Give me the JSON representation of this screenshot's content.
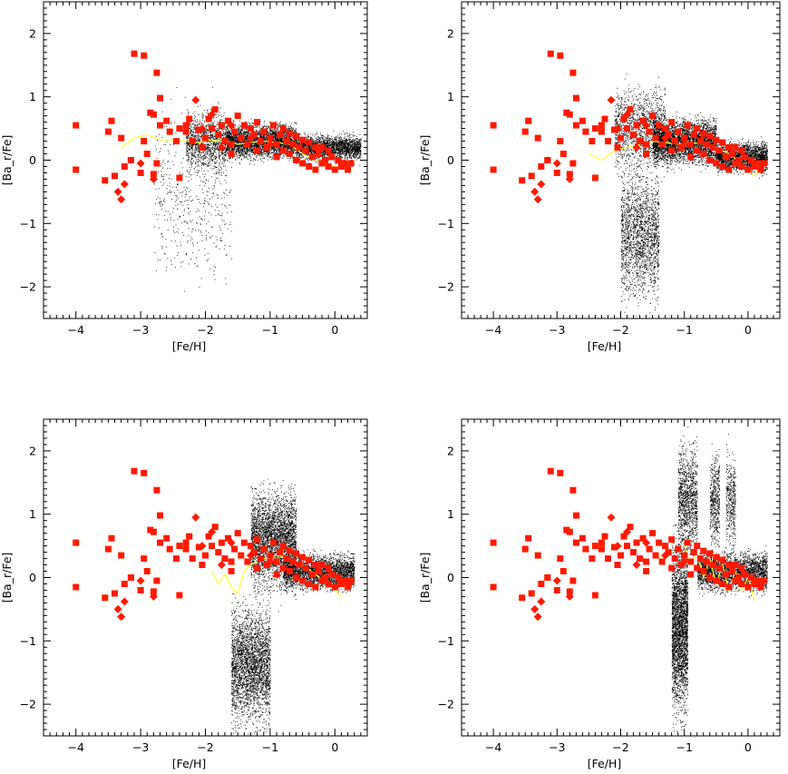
{
  "chart_data": [
    {
      "type": "scatter",
      "panel": "top-left",
      "xlabel": "[Fe/H]",
      "ylabel": "[Ba_r/Fe]",
      "xlim": [
        -4.5,
        0.5
      ],
      "ylim": [
        -2.5,
        2.5
      ],
      "x_ticks": [
        -4,
        -3,
        -2,
        -1,
        0
      ],
      "x_tick_labels": [
        "−4",
        "−3",
        "−2",
        "−1",
        "0"
      ],
      "y_ticks": [
        -2,
        -1,
        0,
        1,
        2
      ],
      "y_tick_labels": [
        "−2",
        "−1",
        "0",
        "1",
        "2"
      ],
      "model_line_color": "#ffff33",
      "trend": [
        [
          -3.3,
          0.2
        ],
        [
          -3.1,
          0.35
        ],
        [
          -2.9,
          0.4
        ],
        [
          -2.7,
          0.32
        ],
        [
          -2.5,
          0.32
        ],
        [
          -2.3,
          0.3
        ],
        [
          -2.1,
          0.28
        ],
        [
          -1.9,
          0.32
        ],
        [
          -1.7,
          0.3
        ],
        [
          -1.5,
          0.25
        ],
        [
          -1.3,
          0.28
        ],
        [
          -1.1,
          0.3
        ],
        [
          -0.9,
          0.28
        ],
        [
          -0.7,
          0.25
        ],
        [
          -0.5,
          0.1
        ],
        [
          -0.3,
          0.0
        ],
        [
          -0.1,
          -0.08
        ],
        [
          0.1,
          -0.12
        ],
        [
          0.2,
          -0.18
        ]
      ],
      "model_cloud": [
        {
          "x": [
            -2.3,
            -1.7
          ],
          "y_mid": 0.3,
          "spread": 0.6,
          "n": 1200
        },
        {
          "x": [
            -1.7,
            -0.6
          ],
          "y_mid": 0.3,
          "spread": 0.35,
          "n": 3500
        },
        {
          "x": [
            -0.6,
            0.4
          ],
          "y_mid": 0.2,
          "spread": 0.25,
          "n": 2500
        },
        {
          "x": [
            -2.8,
            -1.6
          ],
          "y_mid": -0.6,
          "spread": 1.8,
          "n": 500
        }
      ]
    },
    {
      "type": "scatter",
      "panel": "top-right",
      "xlabel": "[Fe/H]",
      "ylabel": "[Ba_r/Fe]",
      "xlim": [
        -4.5,
        0.5
      ],
      "ylim": [
        -2.5,
        2.5
      ],
      "x_ticks": [
        -4,
        -3,
        -2,
        -1,
        0
      ],
      "x_tick_labels": [
        "−4",
        "−3",
        "−2",
        "−1",
        "0"
      ],
      "y_ticks": [
        -2,
        -1,
        0,
        1,
        2
      ],
      "y_tick_labels": [
        "−2",
        "−1",
        "0",
        "1",
        "2"
      ],
      "model_line_color": "#ffff33",
      "trend": [
        [
          -2.5,
          0.1
        ],
        [
          -2.3,
          0.0
        ],
        [
          -2.1,
          0.15
        ],
        [
          -1.9,
          0.2
        ],
        [
          -1.7,
          0.25
        ],
        [
          -1.5,
          0.3
        ],
        [
          -1.3,
          0.28
        ],
        [
          -1.1,
          0.25
        ],
        [
          -0.9,
          0.28
        ],
        [
          -0.7,
          0.25
        ],
        [
          -0.5,
          0.2
        ],
        [
          -0.3,
          0.1
        ],
        [
          -0.1,
          -0.05
        ],
        [
          0.1,
          -0.25
        ],
        [
          0.2,
          -0.1
        ]
      ],
      "model_cloud": [
        {
          "x": [
            -2.0,
            -1.4
          ],
          "y_mid": -1.2,
          "spread": 1.3,
          "n": 2000
        },
        {
          "x": [
            -2.1,
            -1.3
          ],
          "y_mid": 0.5,
          "spread": 0.9,
          "n": 1500
        },
        {
          "x": [
            -1.5,
            -0.5
          ],
          "y_mid": 0.3,
          "spread": 0.45,
          "n": 4000
        },
        {
          "x": [
            -0.5,
            0.3
          ],
          "y_mid": 0.05,
          "spread": 0.3,
          "n": 2500
        }
      ]
    },
    {
      "type": "scatter",
      "panel": "bottom-left",
      "xlabel": "[Fe/H]",
      "ylabel": "[Ba_r/Fe]",
      "xlim": [
        -4.5,
        0.5
      ],
      "ylim": [
        -2.5,
        2.5
      ],
      "x_ticks": [
        -4,
        -3,
        -2,
        -1,
        0
      ],
      "x_tick_labels": [
        "−4",
        "−3",
        "−2",
        "−1",
        "0"
      ],
      "y_ticks": [
        -2,
        -1,
        0,
        1,
        2
      ],
      "y_tick_labels": [
        "−2",
        "−1",
        "0",
        "1",
        "2"
      ],
      "model_line_color": "#ffff33",
      "trend": [
        [
          -1.9,
          0.1
        ],
        [
          -1.8,
          -0.1
        ],
        [
          -1.7,
          0.05
        ],
        [
          -1.6,
          -0.15
        ],
        [
          -1.5,
          -0.25
        ],
        [
          -1.4,
          0.1
        ],
        [
          -1.3,
          0.2
        ],
        [
          -1.1,
          0.3
        ],
        [
          -0.9,
          0.35
        ],
        [
          -0.7,
          0.3
        ],
        [
          -0.5,
          0.2
        ],
        [
          -0.3,
          0.05
        ],
        [
          -0.1,
          -0.1
        ],
        [
          0.1,
          -0.3
        ]
      ],
      "model_cloud": [
        {
          "x": [
            -1.6,
            -1.0
          ],
          "y_mid": -1.4,
          "spread": 1.2,
          "n": 3000
        },
        {
          "x": [
            -1.3,
            -0.6
          ],
          "y_mid": 0.6,
          "spread": 1.0,
          "n": 3500
        },
        {
          "x": [
            -0.8,
            0.3
          ],
          "y_mid": 0.1,
          "spread": 0.35,
          "n": 3000
        }
      ]
    },
    {
      "type": "scatter",
      "panel": "bottom-right",
      "xlabel": "[Fe/H]",
      "ylabel": "[Ba_r/Fe]",
      "xlim": [
        -4.5,
        0.5
      ],
      "ylim": [
        -2.5,
        2.5
      ],
      "x_ticks": [
        -4,
        -3,
        -2,
        -1,
        0
      ],
      "x_tick_labels": [
        "−4",
        "−3",
        "−2",
        "−1",
        "0"
      ],
      "y_ticks": [
        -2,
        -1,
        0,
        1,
        2
      ],
      "y_tick_labels": [
        "−2",
        "−1",
        "0",
        "1",
        "2"
      ],
      "model_line_color": "#ffff33",
      "trend": [
        [
          -1.0,
          0.5
        ],
        [
          -0.9,
          0.2
        ],
        [
          -0.8,
          0.4
        ],
        [
          -0.7,
          0.0
        ],
        [
          -0.6,
          0.3
        ],
        [
          -0.5,
          -0.1
        ],
        [
          -0.4,
          0.2
        ],
        [
          -0.3,
          -0.2
        ],
        [
          -0.2,
          0.1
        ],
        [
          -0.1,
          -0.2
        ],
        [
          0.0,
          0.0
        ],
        [
          0.1,
          -0.35
        ]
      ],
      "model_cloud": [
        {
          "x": [
            -1.2,
            -0.95
          ],
          "y_mid": -0.8,
          "spread": 1.7,
          "n": 3000
        },
        {
          "x": [
            -1.1,
            -0.8
          ],
          "y_mid": 1.2,
          "spread": 1.2,
          "n": 1200
        },
        {
          "x": [
            -0.8,
            0.3
          ],
          "y_mid": 0.1,
          "spread": 0.4,
          "n": 3000
        },
        {
          "x": [
            -0.6,
            -0.45
          ],
          "y_mid": 1.2,
          "spread": 1.0,
          "n": 500
        },
        {
          "x": [
            -0.35,
            -0.2
          ],
          "y_mid": 1.2,
          "spread": 1.0,
          "n": 400
        }
      ]
    }
  ],
  "observations": {
    "marker_color": "#ff1a00",
    "squares": [
      [
        -4.0,
        0.55
      ],
      [
        -4.0,
        -0.15
      ],
      [
        -3.55,
        -0.32
      ],
      [
        -3.45,
        0.62
      ],
      [
        -3.5,
        0.45
      ],
      [
        -3.4,
        -0.25
      ],
      [
        -3.3,
        0.35
      ],
      [
        -3.25,
        -0.1
      ],
      [
        -3.15,
        0.0
      ],
      [
        -3.1,
        1.68
      ],
      [
        -2.95,
        1.65
      ],
      [
        -3.0,
        -0.2
      ],
      [
        -2.95,
        0.3
      ],
      [
        -2.9,
        0.1
      ],
      [
        -2.85,
        0.75
      ],
      [
        -2.8,
        0.72
      ],
      [
        -2.75,
        1.38
      ],
      [
        -2.7,
        0.98
      ],
      [
        -2.7,
        0.55
      ],
      [
        -2.75,
        -0.05
      ],
      [
        -2.8,
        -0.22
      ],
      [
        -2.6,
        0.62
      ],
      [
        -2.55,
        0.45
      ],
      [
        -2.45,
        0.3
      ],
      [
        -2.4,
        -0.28
      ],
      [
        -2.4,
        0.5
      ],
      [
        -2.3,
        0.45
      ],
      [
        -2.25,
        0.65
      ],
      [
        -2.2,
        0.3
      ],
      [
        -2.1,
        0.48
      ],
      [
        -2.05,
        0.2
      ],
      [
        -2.0,
        0.35
      ],
      [
        -1.95,
        0.65
      ],
      [
        -1.9,
        0.5
      ],
      [
        -1.85,
        0.8
      ],
      [
        -1.8,
        0.4
      ],
      [
        -1.75,
        0.55
      ],
      [
        -1.7,
        0.3
      ],
      [
        -1.65,
        0.62
      ],
      [
        -1.6,
        0.25
      ],
      [
        -1.55,
        0.45
      ],
      [
        -1.5,
        0.7
      ],
      [
        -1.45,
        0.35
      ],
      [
        -1.4,
        0.55
      ],
      [
        -1.35,
        0.25
      ],
      [
        -1.3,
        0.5
      ],
      [
        -1.25,
        0.4
      ],
      [
        -1.2,
        0.6
      ],
      [
        -1.15,
        0.3
      ],
      [
        -1.1,
        0.45
      ],
      [
        -1.05,
        0.2
      ],
      [
        -1.0,
        0.35
      ],
      [
        -0.95,
        0.55
      ],
      [
        -0.9,
        0.25
      ],
      [
        -0.85,
        0.4
      ],
      [
        -0.8,
        0.15
      ],
      [
        -0.8,
        0.5
      ],
      [
        -0.75,
        0.3
      ],
      [
        -0.7,
        0.1
      ],
      [
        -0.7,
        0.42
      ],
      [
        -0.65,
        0.25
      ],
      [
        -0.6,
        0.0
      ],
      [
        -0.6,
        0.38
      ],
      [
        -0.55,
        0.2
      ],
      [
        -0.5,
        0.32
      ],
      [
        -0.5,
        -0.05
      ],
      [
        -0.45,
        0.15
      ],
      [
        -0.4,
        0.28
      ],
      [
        -0.4,
        -0.1
      ],
      [
        -0.35,
        0.05
      ],
      [
        -0.3,
        0.2
      ],
      [
        -0.3,
        -0.15
      ],
      [
        -0.25,
        0.1
      ],
      [
        -0.2,
        -0.05
      ],
      [
        -0.2,
        0.2
      ],
      [
        -0.15,
        0.0
      ],
      [
        -0.1,
        -0.1
      ],
      [
        -0.1,
        0.15
      ],
      [
        -0.05,
        0.05
      ],
      [
        0.0,
        -0.15
      ],
      [
        0.05,
        0.0
      ],
      [
        0.1,
        -0.1
      ],
      [
        0.15,
        -0.05
      ],
      [
        0.2,
        -0.15
      ],
      [
        0.25,
        -0.05
      ],
      [
        -1.2,
        0.15
      ],
      [
        -0.9,
        0.05
      ],
      [
        -1.6,
        0.1
      ],
      [
        -2.3,
        0.55
      ],
      [
        -3.15,
        0.0
      ]
    ],
    "diamonds": [
      [
        -3.3,
        -0.62
      ],
      [
        -3.25,
        -0.38
      ],
      [
        -3.35,
        -0.5
      ],
      [
        -3.0,
        -0.05
      ],
      [
        -2.8,
        -0.3
      ],
      [
        -2.15,
        0.95
      ],
      [
        -1.9,
        0.72
      ],
      [
        -1.6,
        0.55
      ],
      [
        -1.3,
        0.35
      ],
      [
        -1.0,
        0.25
      ],
      [
        -2.05,
        0.5
      ],
      [
        -1.75,
        0.2
      ]
    ]
  }
}
